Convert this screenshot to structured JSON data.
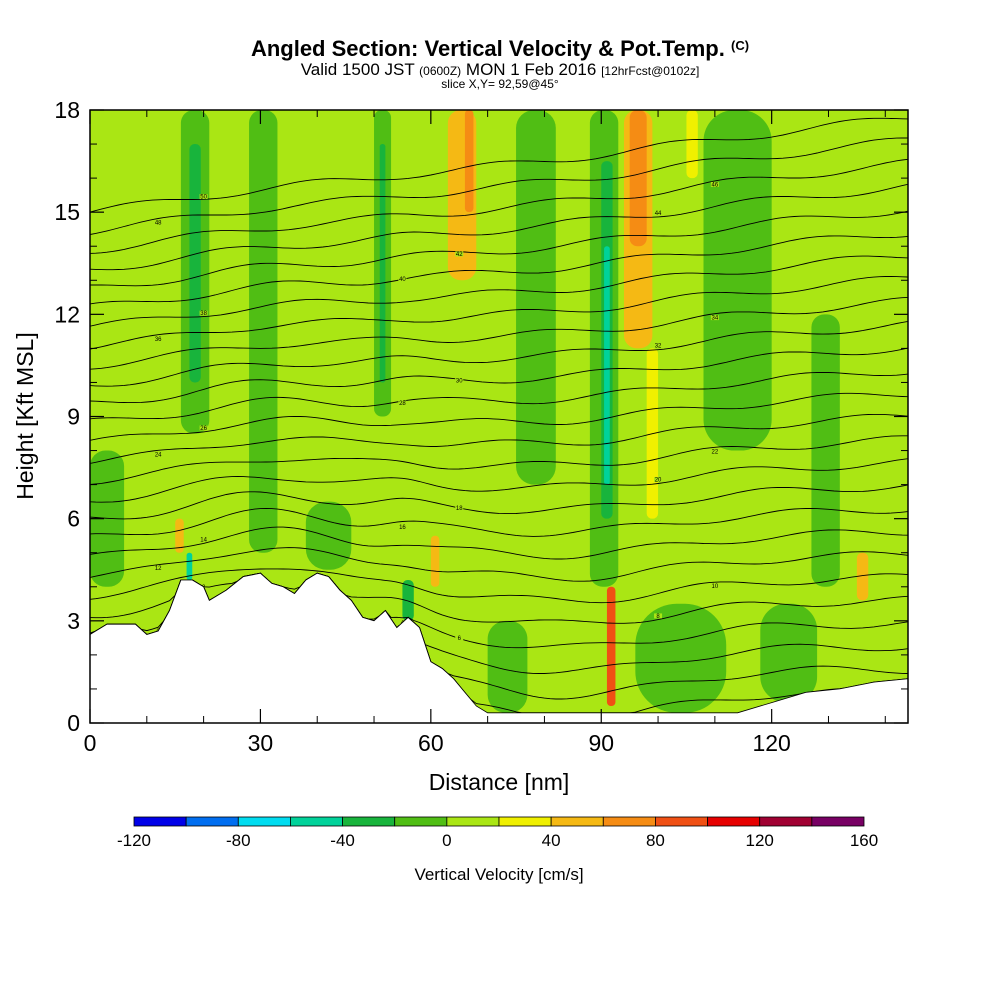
{
  "header": {
    "title": "Angled Section: Vertical Velocity & Pot.Temp.",
    "title_unit": "(C)",
    "valid_prefix": "Valid 1500 JST",
    "valid_utc": "(0600Z)",
    "valid_date": "MON 1 Feb 2016",
    "forecast_info": "[12hrFcst@0102z]",
    "slice_info": "slice X,Y= 92,59@45°"
  },
  "chart_data": {
    "type": "heatmap",
    "xlabel": "Distance [nm]",
    "ylabel": "Height [Kft MSL]",
    "xlim": [
      0,
      144
    ],
    "ylim": [
      0,
      18
    ],
    "x_ticks": [
      "0",
      "30",
      "60",
      "90",
      "120"
    ],
    "x_tick_values": [
      0,
      30,
      60,
      90,
      120
    ],
    "y_ticks": [
      "0",
      "3",
      "6",
      "9",
      "12",
      "15",
      "18"
    ],
    "y_tick_values": [
      0,
      3,
      6,
      9,
      12,
      15,
      18
    ],
    "colorbar": {
      "label": "Vertical Velocity [cm/s]",
      "tick_labels": [
        "-120",
        "-80",
        "-40",
        "0",
        "40",
        "80",
        "120",
        "160"
      ],
      "bins": [
        -120,
        -100,
        -80,
        -60,
        -40,
        -20,
        0,
        20,
        40,
        60,
        80,
        100,
        120,
        140,
        160
      ],
      "colors": [
        "#0000e8",
        "#006ef0",
        "#00dcf0",
        "#00d29a",
        "#18b43c",
        "#50be14",
        "#aae614",
        "#f0f000",
        "#f5b914",
        "#f58c14",
        "#f05014",
        "#e60000",
        "#a00032",
        "#780064"
      ]
    },
    "background_color": "#aae614",
    "terrain": {
      "x": [
        0,
        3,
        8,
        10,
        12,
        14,
        16,
        18,
        20,
        21,
        24,
        27,
        30,
        32,
        34,
        36,
        38,
        40,
        42,
        44,
        46,
        48,
        50,
        52,
        54,
        56,
        58,
        60,
        62,
        64,
        66,
        68,
        70,
        75,
        80,
        90,
        100,
        110,
        114,
        120,
        126,
        132,
        138,
        144
      ],
      "height_kft": [
        2.6,
        2.9,
        2.9,
        2.6,
        2.7,
        3.3,
        4.2,
        4.2,
        4.0,
        3.6,
        3.9,
        4.3,
        4.4,
        4.1,
        4.0,
        3.8,
        4.2,
        4.4,
        4.3,
        3.9,
        3.6,
        3.1,
        3.0,
        3.3,
        2.8,
        3.1,
        2.8,
        1.8,
        1.6,
        1.3,
        0.9,
        0.5,
        0.3,
        0.3,
        0.3,
        0.3,
        0.3,
        0.3,
        0.3,
        0.6,
        0.9,
        1.0,
        1.2,
        1.3
      ]
    },
    "updraft_zones": [
      {
        "x0": 63,
        "x1": 68,
        "y0": 13,
        "y1": 18,
        "w": 40
      },
      {
        "x0": 66,
        "x1": 67.5,
        "y0": 15,
        "y1": 18,
        "w": 60
      },
      {
        "x0": 94,
        "x1": 99,
        "y0": 11,
        "y1": 18,
        "w": 50
      },
      {
        "x0": 95,
        "x1": 98,
        "y0": 14,
        "y1": 18,
        "w": 70
      },
      {
        "x0": 98,
        "x1": 100,
        "y0": 6,
        "y1": 11,
        "w": 30
      },
      {
        "x0": 91,
        "x1": 92.5,
        "y0": 0.5,
        "y1": 4,
        "w": 80
      },
      {
        "x0": 60,
        "x1": 61.5,
        "y0": 4,
        "y1": 5.5,
        "w": 40
      },
      {
        "x0": 15,
        "x1": 16.5,
        "y0": 5,
        "y1": 6,
        "w": 40
      },
      {
        "x0": 135,
        "x1": 137,
        "y0": 3.6,
        "y1": 5,
        "w": 40
      },
      {
        "x0": 105,
        "x1": 107,
        "y0": 16,
        "y1": 18,
        "w": 30
      }
    ],
    "downdraft_zones": [
      {
        "x0": 16,
        "x1": 21,
        "y0": 8.5,
        "y1": 18,
        "w": -20
      },
      {
        "x0": 17.5,
        "x1": 19.5,
        "y0": 10,
        "y1": 17,
        "w": -40
      },
      {
        "x0": 28,
        "x1": 33,
        "y0": 5,
        "y1": 18,
        "w": -20
      },
      {
        "x0": 50,
        "x1": 53,
        "y0": 9,
        "y1": 18,
        "w": -20
      },
      {
        "x0": 51,
        "x1": 52,
        "y0": 10,
        "y1": 17,
        "w": -40
      },
      {
        "x0": 88,
        "x1": 93,
        "y0": 4,
        "y1": 18,
        "w": -20
      },
      {
        "x0": 90,
        "x1": 92,
        "y0": 6,
        "y1": 16.5,
        "w": -40
      },
      {
        "x0": 90.5,
        "x1": 91.5,
        "y0": 7,
        "y1": 14,
        "w": -60
      },
      {
        "x0": 70,
        "x1": 77,
        "y0": 0.3,
        "y1": 3,
        "w": -20
      },
      {
        "x0": 96,
        "x1": 112,
        "y0": 0.3,
        "y1": 3.5,
        "w": -20
      },
      {
        "x0": 118,
        "x1": 128,
        "y0": 0.6,
        "y1": 3.5,
        "w": -20
      },
      {
        "x0": 75,
        "x1": 82,
        "y0": 7,
        "y1": 18,
        "w": -20
      },
      {
        "x0": 108,
        "x1": 120,
        "y0": 8,
        "y1": 18,
        "w": -20
      },
      {
        "x0": 127,
        "x1": 132,
        "y0": 4,
        "y1": 12,
        "w": -20
      },
      {
        "x0": 0,
        "x1": 6,
        "y0": 4,
        "y1": 8,
        "w": -20
      },
      {
        "x0": 38,
        "x1": 46,
        "y0": 4.5,
        "y1": 6.5,
        "w": -20
      },
      {
        "x0": 17,
        "x1": 18,
        "y0": 4.2,
        "y1": 5,
        "w": -60
      },
      {
        "x0": 55,
        "x1": 57,
        "y0": 3,
        "y1": 4.2,
        "w": -40
      }
    ],
    "isentropes": {
      "level_count": 26,
      "spacing_kft": 0.62,
      "mountain_bump_kft": 1.4,
      "valley_dip_kft": 0.8,
      "upper_slope": 0.02,
      "label_x_positions": [
        12,
        20,
        55,
        65,
        100,
        110
      ],
      "labels": [
        "0",
        "2",
        "4",
        "6",
        "8",
        "10",
        "12",
        "14",
        "16",
        "18",
        "20",
        "22",
        "24",
        "26",
        "28",
        "30",
        "32",
        "34",
        "36",
        "38",
        "40",
        "42",
        "44",
        "46",
        "48",
        "50"
      ]
    }
  }
}
